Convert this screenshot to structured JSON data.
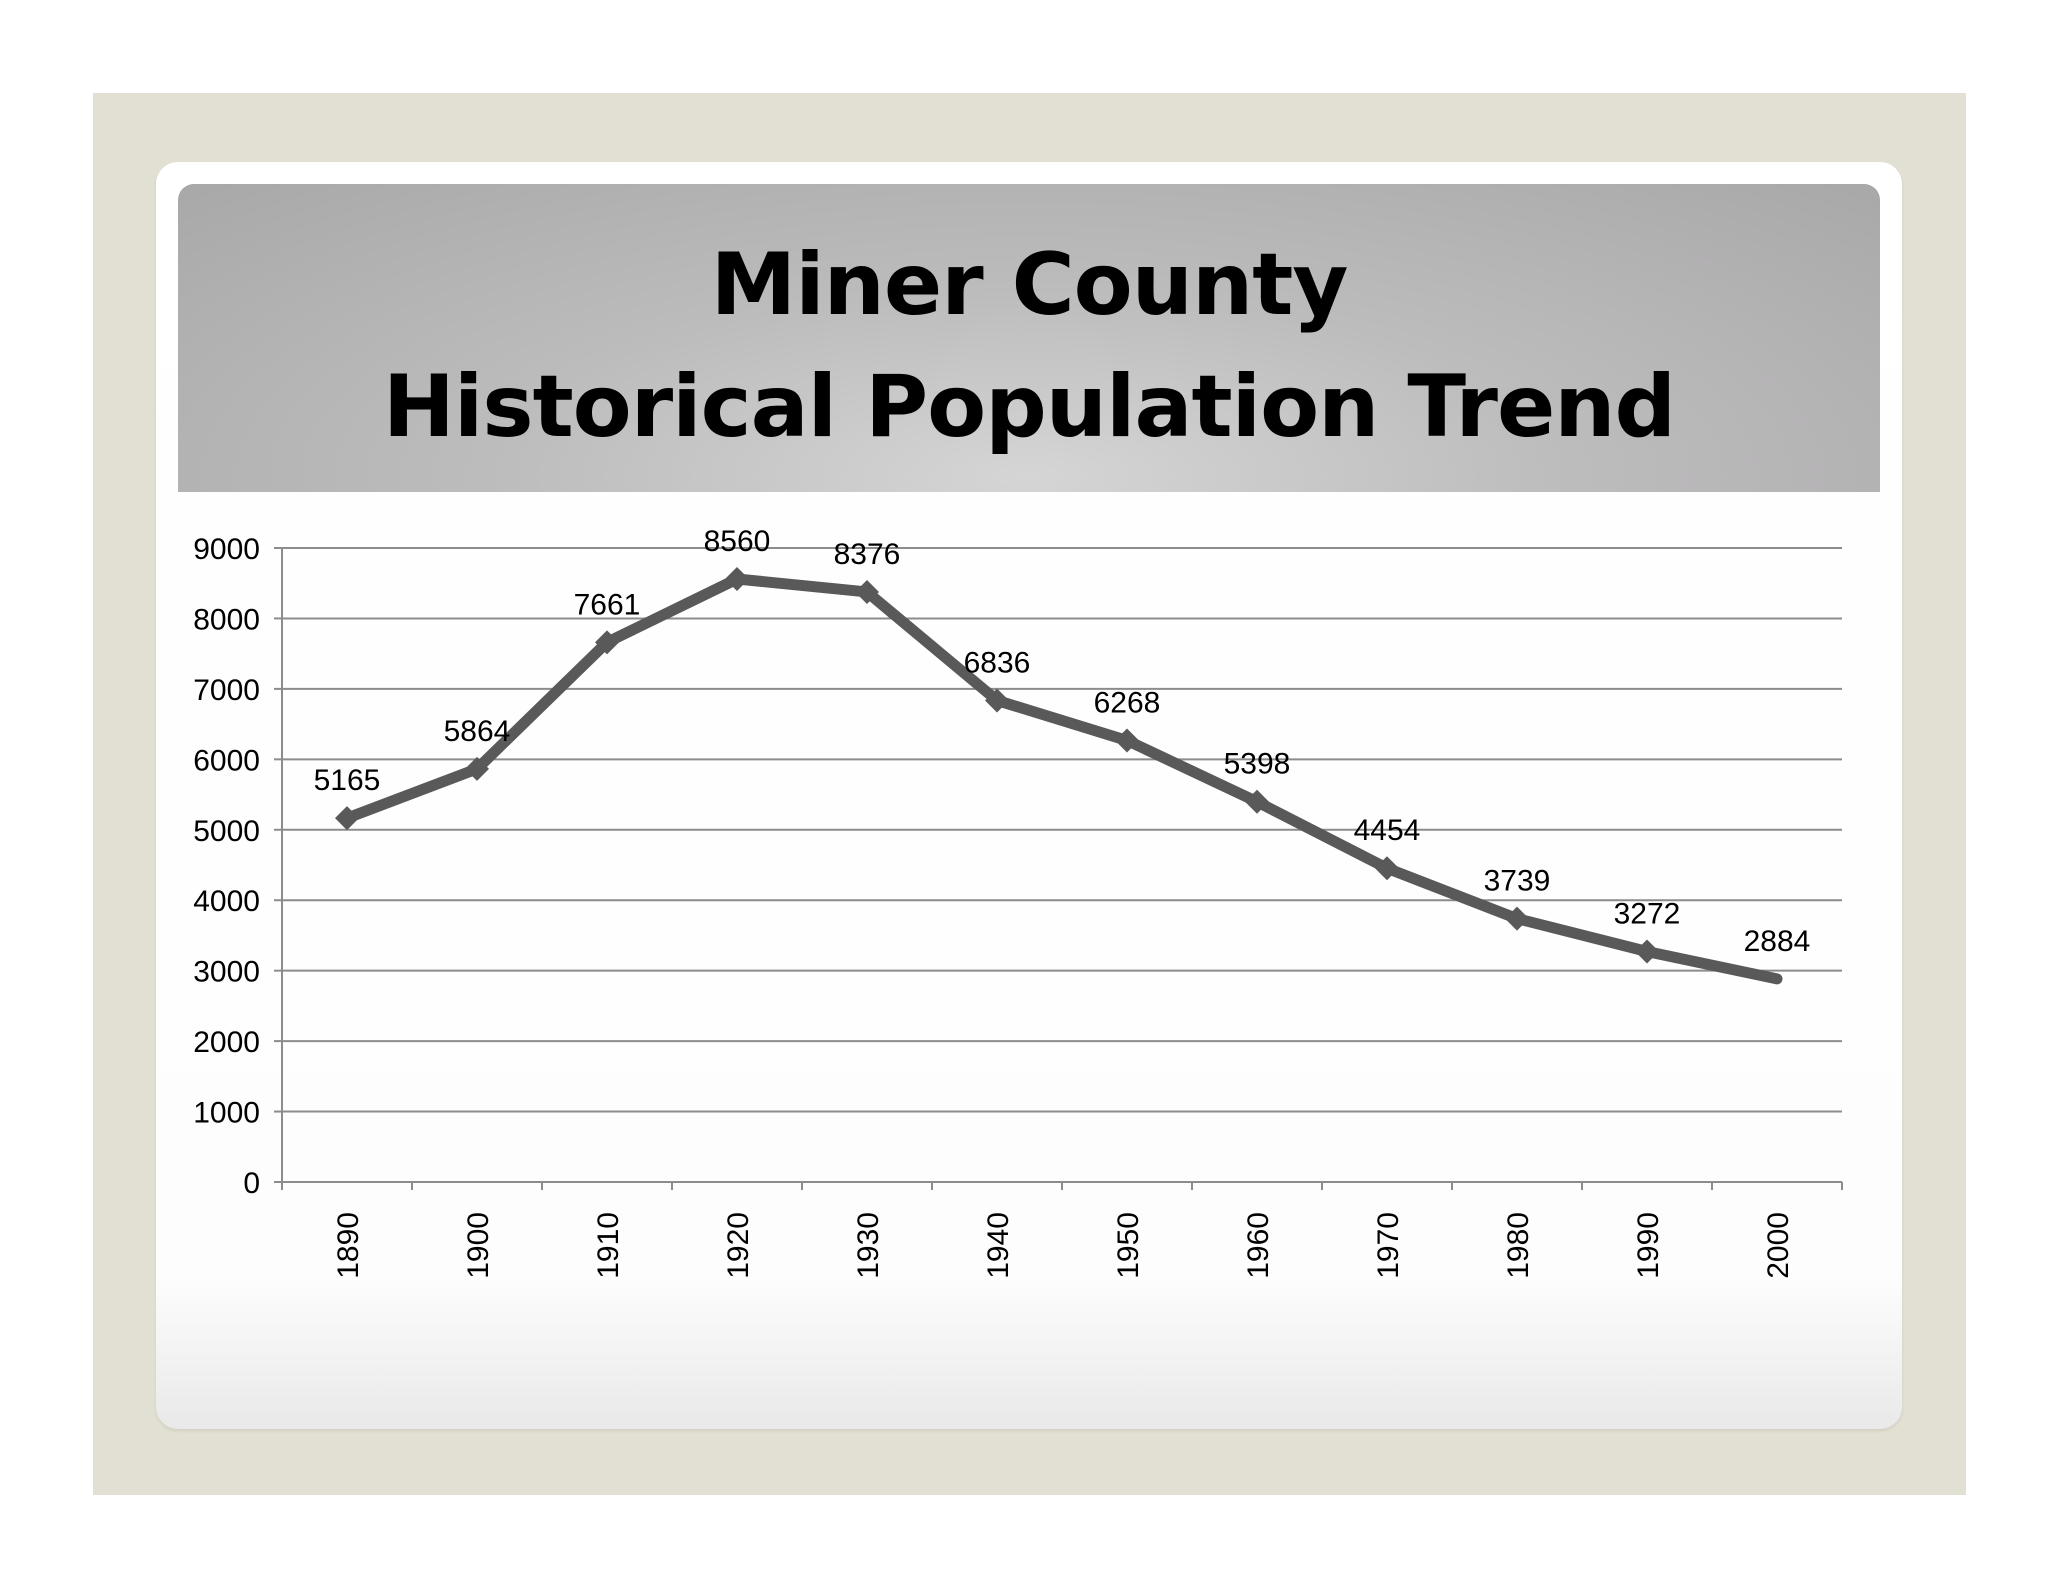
{
  "slide": {
    "title_line_1": "Miner County",
    "title_line_2": "Historical Population Trend"
  },
  "colors": {
    "frame": "#e2e0d2",
    "series_line": "#595959",
    "gridline": "#8c8c8c"
  },
  "chart_data": {
    "type": "line",
    "title": "Miner County Historical Population Trend",
    "xlabel": "",
    "ylabel": "",
    "categories": [
      "1890",
      "1900",
      "1910",
      "1920",
      "1930",
      "1940",
      "1950",
      "1960",
      "1970",
      "1980",
      "1990",
      "2000"
    ],
    "series": [
      {
        "values": [
          5165,
          5864,
          7661,
          8560,
          8376,
          6836,
          6268,
          5398,
          4454,
          3739,
          3272,
          2884
        ],
        "marker": "diamond",
        "data_labels": true
      }
    ],
    "ylim": [
      0,
      9000
    ],
    "yticks": [
      0,
      1000,
      2000,
      3000,
      4000,
      5000,
      6000,
      7000,
      8000,
      9000
    ],
    "grid": true,
    "legend": "none",
    "x_tick_rotation": "vertical"
  }
}
